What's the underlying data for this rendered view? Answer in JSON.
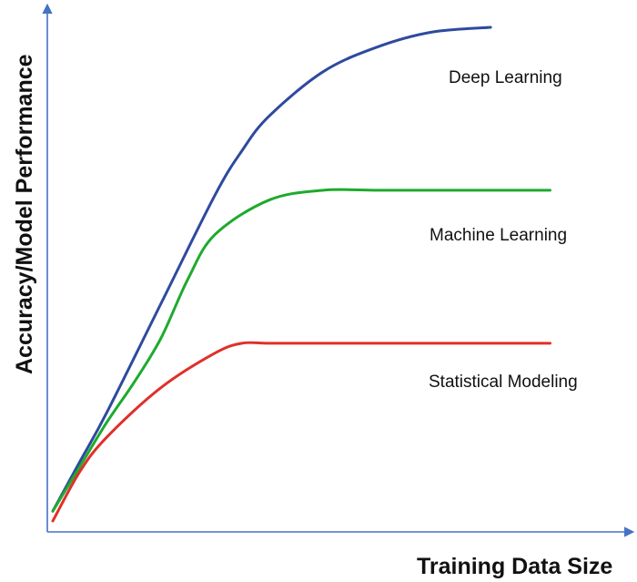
{
  "chart_data": {
    "type": "line",
    "title": "",
    "xlabel": "Training Data Size",
    "ylabel": "Accuracy/Model Performance",
    "xlim": [
      0,
      100
    ],
    "ylim": [
      0,
      100
    ],
    "grid": false,
    "legend": "none",
    "axis_color": "#4472c4",
    "series": [
      {
        "name": "Deep Learning",
        "color": "#2e4a9e",
        "x": [
          0,
          5,
          10,
          20,
          30,
          35,
          40,
          50,
          60,
          70,
          81
        ],
        "y": [
          2,
          12,
          22,
          44,
          66,
          75,
          82,
          91,
          96,
          99,
          100
        ]
      },
      {
        "name": "Machine Learning",
        "color": "#1eaa2d",
        "x": [
          0,
          5,
          10,
          15,
          20,
          25,
          30,
          40,
          50,
          60,
          70,
          80,
          92
        ],
        "y": [
          2,
          11,
          20,
          28,
          37,
          49,
          58,
          65,
          67,
          67,
          67,
          67,
          67
        ]
      },
      {
        "name": "Statistical Modeling",
        "color": "#e0302a",
        "x": [
          0,
          5,
          10,
          20,
          30,
          35,
          40,
          50,
          60,
          70,
          80,
          92
        ],
        "y": [
          0,
          10,
          17,
          27,
          34,
          36,
          36,
          36,
          36,
          36,
          36,
          36
        ]
      }
    ]
  }
}
